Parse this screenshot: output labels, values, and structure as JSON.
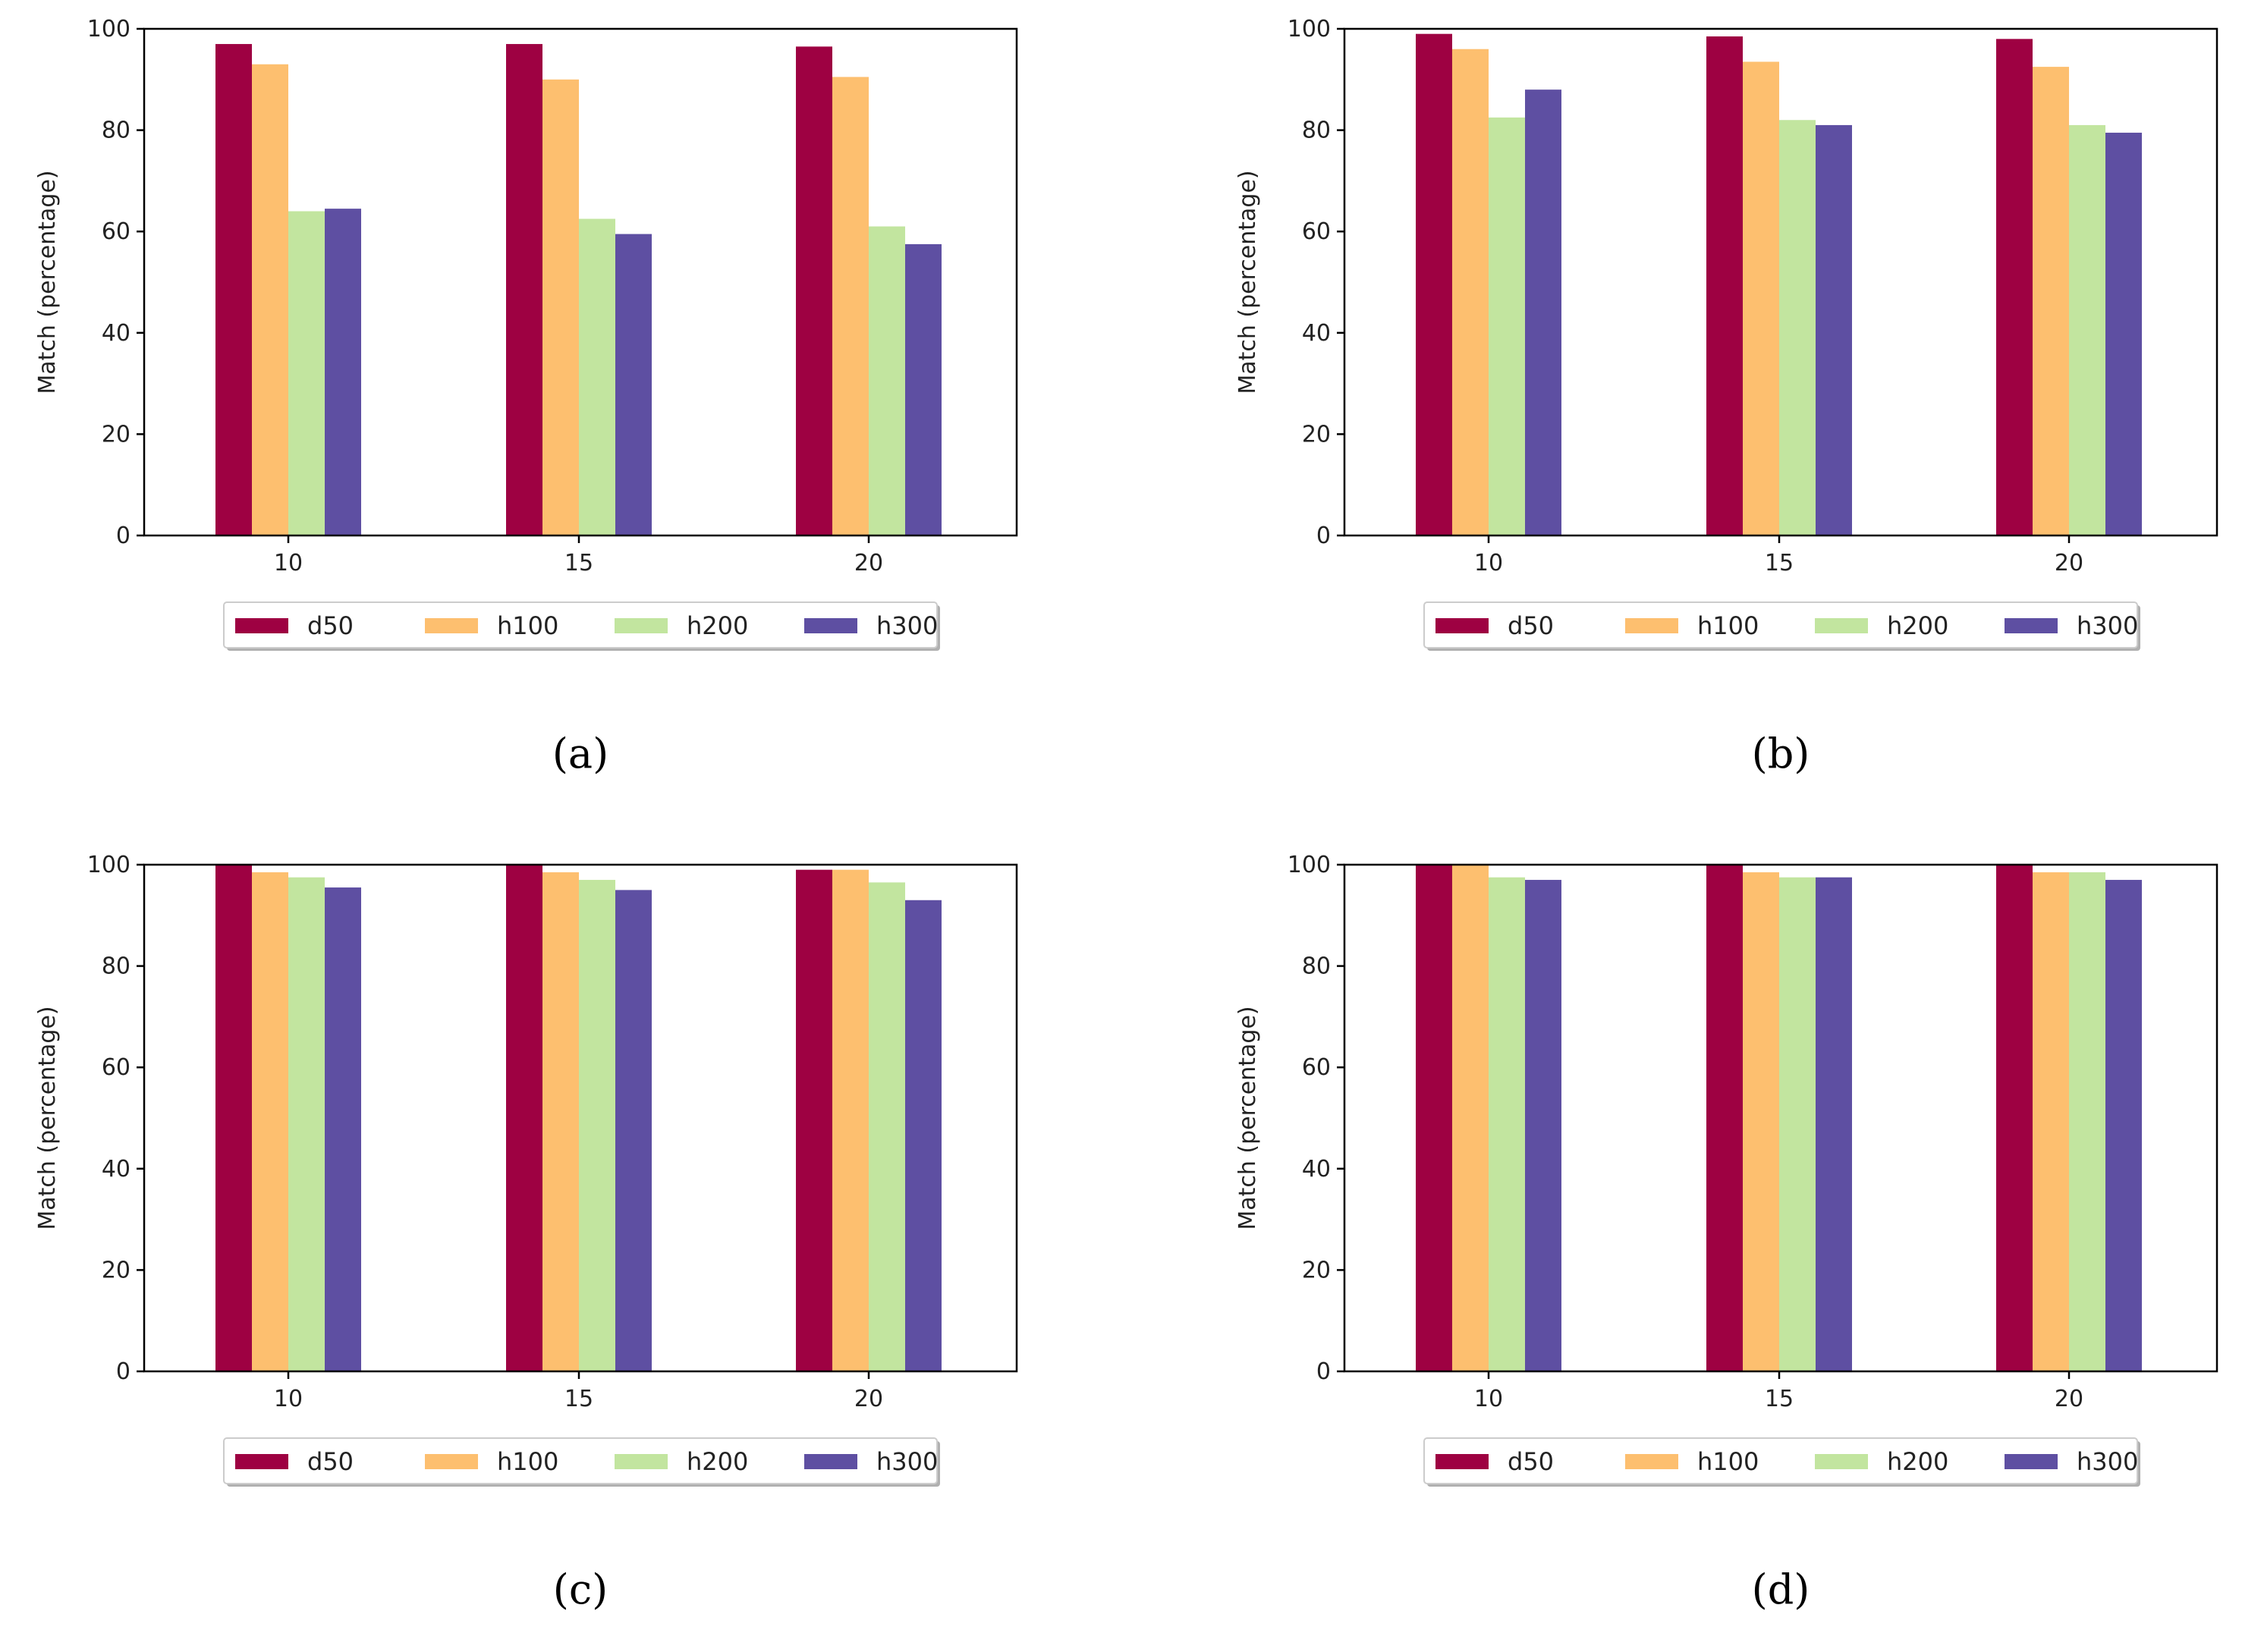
{
  "figure": {
    "colors": {
      "d50": "#9e0142",
      "h100": "#fdbf6f",
      "h200": "#c2e59f",
      "h300": "#5e4fa2"
    }
  },
  "chart_data": [
    {
      "type": "bar",
      "panel_label": "(a)",
      "categories": [
        "10",
        "15",
        "20"
      ],
      "series": [
        {
          "name": "d50",
          "values": [
            97,
            97,
            96.5
          ]
        },
        {
          "name": "h100",
          "values": [
            93,
            90,
            90.5
          ]
        },
        {
          "name": "h200",
          "values": [
            64,
            62.5,
            61
          ]
        },
        {
          "name": "h300",
          "values": [
            64.5,
            59.5,
            57.5
          ]
        }
      ],
      "xlabel": "",
      "ylabel": "Match (percentage)",
      "ylim": [
        0,
        100
      ],
      "yticks": [
        "0",
        "20",
        "40",
        "60",
        "80",
        "100"
      ],
      "grid": false,
      "legend": {
        "placement": "bottom-center",
        "entries": [
          "d50",
          "h100",
          "h200",
          "h300"
        ]
      }
    },
    {
      "type": "bar",
      "panel_label": "(b)",
      "categories": [
        "10",
        "15",
        "20"
      ],
      "series": [
        {
          "name": "d50",
          "values": [
            99,
            98.5,
            98
          ]
        },
        {
          "name": "h100",
          "values": [
            96,
            93.5,
            92.5
          ]
        },
        {
          "name": "h200",
          "values": [
            82.5,
            82,
            81
          ]
        },
        {
          "name": "h300",
          "values": [
            88,
            81,
            79.5
          ]
        }
      ],
      "xlabel": "",
      "ylabel": "Match (percentage)",
      "ylim": [
        0,
        100
      ],
      "yticks": [
        "0",
        "20",
        "40",
        "60",
        "80",
        "100"
      ],
      "grid": false,
      "legend": {
        "placement": "bottom-center",
        "entries": [
          "d50",
          "h100",
          "h200",
          "h300"
        ]
      }
    },
    {
      "type": "bar",
      "panel_label": "(c)",
      "categories": [
        "10",
        "15",
        "20"
      ],
      "series": [
        {
          "name": "d50",
          "values": [
            100,
            100,
            99
          ]
        },
        {
          "name": "h100",
          "values": [
            98.5,
            98.5,
            99
          ]
        },
        {
          "name": "h200",
          "values": [
            97.5,
            97,
            96.5
          ]
        },
        {
          "name": "h300",
          "values": [
            95.5,
            95,
            93
          ]
        }
      ],
      "xlabel": "",
      "ylabel": "Match (percentage)",
      "ylim": [
        0,
        100
      ],
      "yticks": [
        "0",
        "20",
        "40",
        "60",
        "80",
        "100"
      ],
      "grid": false,
      "legend": {
        "placement": "bottom-center",
        "entries": [
          "d50",
          "h100",
          "h200",
          "h300"
        ]
      }
    },
    {
      "type": "bar",
      "panel_label": "(d)",
      "categories": [
        "10",
        "15",
        "20"
      ],
      "series": [
        {
          "name": "d50",
          "values": [
            100,
            100,
            100
          ]
        },
        {
          "name": "h100",
          "values": [
            100,
            98.5,
            98.5
          ]
        },
        {
          "name": "h200",
          "values": [
            97.5,
            97.5,
            98.5
          ]
        },
        {
          "name": "h300",
          "values": [
            97,
            97.5,
            97
          ]
        }
      ],
      "xlabel": "",
      "ylabel": "Match (percentage)",
      "ylim": [
        0,
        100
      ],
      "yticks": [
        "0",
        "20",
        "40",
        "60",
        "80",
        "100"
      ],
      "grid": false,
      "legend": {
        "placement": "bottom-center",
        "entries": [
          "d50",
          "h100",
          "h200",
          "h300"
        ]
      }
    }
  ]
}
